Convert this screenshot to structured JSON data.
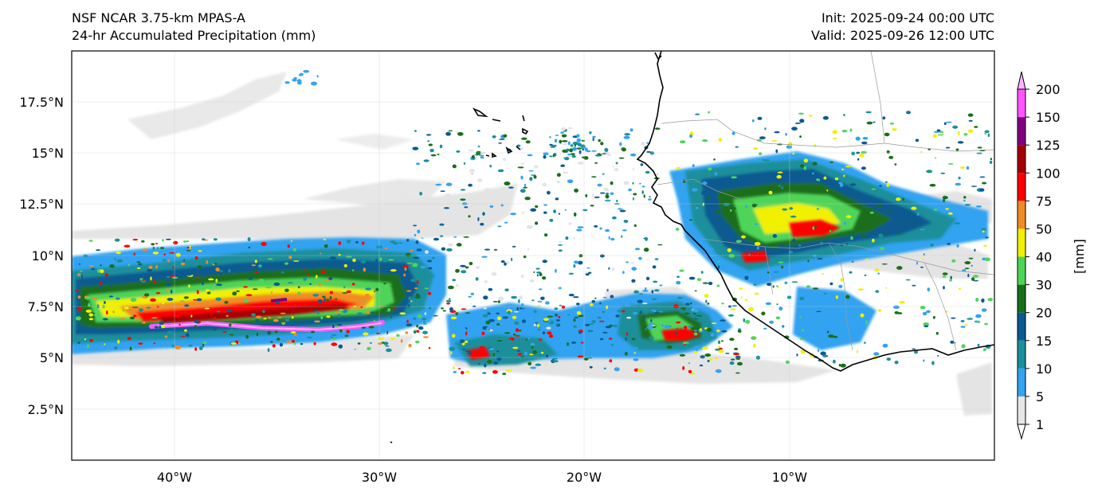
{
  "header": {
    "model": "NSF NCAR 3.75-km MPAS-A",
    "field": "24-hr Accumulated Precipitation (mm)",
    "init": "Init: 2025-09-24 00:00 UTC",
    "valid": "Valid: 2025-09-26 12:00 UTC"
  },
  "map": {
    "lon_ticks": [
      "40°W",
      "30°W",
      "20°W",
      "10°W"
    ],
    "lat_ticks": [
      "17.5°N",
      "15°N",
      "12.5°N",
      "10°N",
      "7.5°N",
      "5°N",
      "2.5°N"
    ]
  },
  "colorbar": {
    "label": "[mm]",
    "levels": [
      "1",
      "5",
      "10",
      "15",
      "20",
      "30",
      "40",
      "50",
      "75",
      "100",
      "125",
      "150",
      "200"
    ],
    "colors": [
      "#e6e6e6",
      "#33a3f0",
      "#1a8f9b",
      "#0a5a91",
      "#1a6e1a",
      "#4fd45a",
      "#f0f000",
      "#f08c26",
      "#ff0000",
      "#a50000",
      "#800080",
      "#ff55ff",
      "#ffb3ff"
    ]
  }
}
